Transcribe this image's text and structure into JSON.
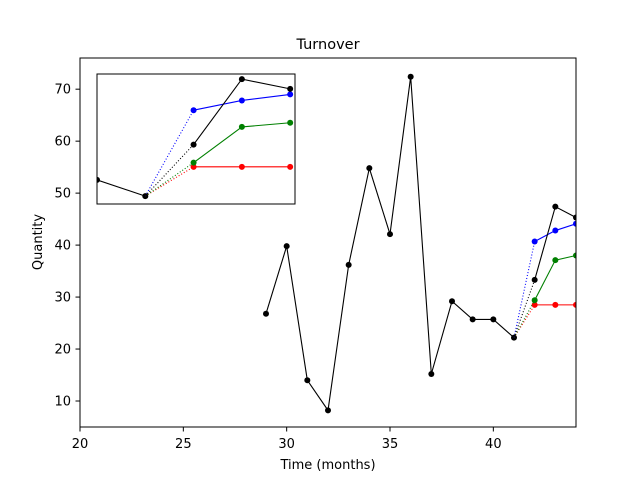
{
  "chart_data": {
    "type": "line",
    "title": "Turnover",
    "xlabel": "Time (months)",
    "ylabel": "Quantity",
    "xlim": [
      20,
      44
    ],
    "ylim": [
      5,
      76
    ],
    "xticks": [
      20,
      25,
      30,
      35,
      40
    ],
    "yticks": [
      10,
      20,
      30,
      40,
      50,
      60,
      70
    ],
    "grid": false,
    "legend": "none",
    "colors": {
      "observed": "#000000",
      "forecast_low": "#ff0000",
      "forecast_mid": "#008000",
      "forecast_high": "#0000ff",
      "forecast_actual": "#000000"
    },
    "series": [
      {
        "name": "observed",
        "color": "#000000",
        "style": "solid",
        "x": [
          29,
          30,
          31,
          32,
          33,
          34,
          35,
          36,
          37,
          38,
          39,
          40,
          41
        ],
        "y": [
          26.8,
          39.8,
          14.0,
          8.2,
          36.2,
          54.8,
          42.1,
          72.4,
          15.2,
          29.2,
          25.7,
          25.7,
          22.2
        ]
      },
      {
        "name": "forecast-low",
        "color": "#ff0000",
        "style": "solid",
        "connector_from": {
          "x": 41,
          "y": 22.2
        },
        "x": [
          42,
          43,
          44
        ],
        "y": [
          28.5,
          28.5,
          28.5
        ]
      },
      {
        "name": "forecast-mid",
        "color": "#008000",
        "style": "solid",
        "connector_from": {
          "x": 41,
          "y": 22.2
        },
        "x": [
          42,
          43,
          44
        ],
        "y": [
          29.4,
          37.1,
          38.0
        ]
      },
      {
        "name": "forecast-high",
        "color": "#0000ff",
        "style": "solid",
        "connector_from": {
          "x": 41,
          "y": 22.2
        },
        "x": [
          42,
          43,
          44
        ],
        "y": [
          40.7,
          42.8,
          44.1
        ]
      },
      {
        "name": "forecast-actual",
        "color": "#000000",
        "style": "solid",
        "connector_from": {
          "x": 41,
          "y": 22.2
        },
        "x": [
          42,
          43,
          44
        ],
        "y": [
          33.3,
          47.4,
          45.3
        ]
      }
    ],
    "inset": {
      "description": "zoom of months 40 to 44",
      "xlim": [
        40,
        44.1
      ],
      "ylim": [
        20.5,
        48.5
      ],
      "include_x_from": 40,
      "ticks": false
    }
  }
}
